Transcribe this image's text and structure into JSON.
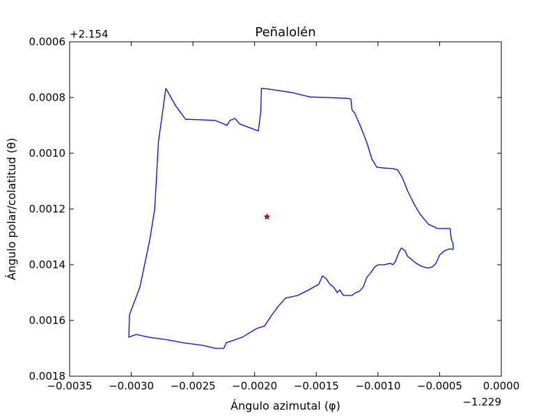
{
  "chart_data": {
    "type": "line",
    "title": "Peñalolén",
    "xlabel": "Ángulo azimutal (φ)",
    "ylabel": "Ángulo polar/colatitud (θ)",
    "x_offset_label": "−1.229",
    "y_offset_label": "+2.154",
    "x_offset": -1.229,
    "y_offset": 2.154,
    "xlim": [
      -0.0035,
      0.0
    ],
    "ylim": [
      0.0006,
      0.0018
    ],
    "y_inverted": true,
    "grid": false,
    "xticks": [
      -0.0035,
      -0.003,
      -0.0025,
      -0.002,
      -0.0015,
      -0.001,
      -0.0005,
      0.0
    ],
    "xtick_labels": [
      "−0.0035",
      "−0.0030",
      "−0.0025",
      "−0.0020",
      "−0.0015",
      "−0.0010",
      "−0.0005",
      "0.0000"
    ],
    "yticks": [
      0.0006,
      0.0008,
      0.001,
      0.0012,
      0.0014,
      0.0016,
      0.0018
    ],
    "ytick_labels": [
      "0.0006",
      "0.0008",
      "0.0010",
      "0.0012",
      "0.0014",
      "0.0016",
      "0.0018"
    ],
    "series": [
      {
        "color": "#0000ff",
        "points": [
          [
            -0.00272,
            0.000767
          ],
          [
            -0.00264,
            0.00083
          ],
          [
            -0.00256,
            0.000878
          ],
          [
            -0.00243,
            0.00088
          ],
          [
            -0.00232,
            0.000882
          ],
          [
            -0.00225,
            0.000895
          ],
          [
            -0.002225,
            0.0009
          ],
          [
            -0.0022,
            0.000882
          ],
          [
            -0.00216,
            0.000875
          ],
          [
            -0.00212,
            0.000895
          ],
          [
            -0.00197,
            0.00092
          ],
          [
            -0.00196,
            0.000885
          ],
          [
            -0.00195,
            0.00085
          ],
          [
            -0.001945,
            0.000767
          ],
          [
            -0.00188,
            0.00077
          ],
          [
            -0.0017,
            0.000782
          ],
          [
            -0.00155,
            0.000798
          ],
          [
            -0.0014,
            0.0008
          ],
          [
            -0.00125,
            0.000803
          ],
          [
            -0.00122,
            0.000805
          ],
          [
            -0.00121,
            0.000845
          ],
          [
            -0.00119,
            0.000855
          ],
          [
            -0.00114,
            0.000905
          ],
          [
            -0.00109,
            0.000962
          ],
          [
            -0.00105,
            0.00102
          ],
          [
            -0.00101,
            0.00105
          ],
          [
            -0.00095,
            0.001053
          ],
          [
            -0.00088,
            0.001055
          ],
          [
            -0.00084,
            0.00106
          ],
          [
            -0.0008,
            0.00109
          ],
          [
            -0.00076,
            0.001135
          ],
          [
            -0.00071,
            0.00118
          ],
          [
            -0.00066,
            0.001218
          ],
          [
            -0.00059,
            0.001255
          ],
          [
            -0.00054,
            0.001265
          ],
          [
            -0.00052,
            0.00127
          ],
          [
            -0.000415,
            0.00127
          ],
          [
            -0.00041,
            0.00129
          ],
          [
            -0.000405,
            0.00131
          ],
          [
            -0.00039,
            0.001325
          ],
          [
            -0.00039,
            0.001345
          ],
          [
            -0.00042,
            0.001343
          ],
          [
            -0.00046,
            0.00135
          ],
          [
            -0.0005,
            0.001365
          ],
          [
            -0.00053,
            0.001395
          ],
          [
            -0.00056,
            0.001408
          ],
          [
            -0.0006,
            0.001412
          ],
          [
            -0.00065,
            0.001405
          ],
          [
            -0.00069,
            0.001395
          ],
          [
            -0.00073,
            0.00138
          ],
          [
            -0.00076,
            0.00137
          ],
          [
            -0.00078,
            0.00135
          ],
          [
            -0.00081,
            0.00134
          ],
          [
            -0.00083,
            0.001355
          ],
          [
            -0.00086,
            0.00139
          ],
          [
            -0.00088,
            0.0014
          ],
          [
            -0.0009,
            0.001395
          ],
          [
            -0.00095,
            0.0014
          ],
          [
            -0.001,
            0.0014
          ],
          [
            -0.00103,
            0.00141
          ],
          [
            -0.00106,
            0.00143
          ],
          [
            -0.00109,
            0.001445
          ],
          [
            -0.00112,
            0.00148
          ],
          [
            -0.00115,
            0.001495
          ],
          [
            -0.00118,
            0.0015
          ],
          [
            -0.00121,
            0.00151
          ],
          [
            -0.00128,
            0.00151
          ],
          [
            -0.00131,
            0.00149
          ],
          [
            -0.00133,
            0.0015
          ],
          [
            -0.00136,
            0.00148
          ],
          [
            -0.00139,
            0.00147
          ],
          [
            -0.00142,
            0.00145
          ],
          [
            -0.00145,
            0.00144
          ],
          [
            -0.00148,
            0.00147
          ],
          [
            -0.00152,
            0.00148
          ],
          [
            -0.00156,
            0.00149
          ],
          [
            -0.00165,
            0.00151
          ],
          [
            -0.00175,
            0.00152
          ],
          [
            -0.00181,
            0.00155
          ],
          [
            -0.00186,
            0.00158
          ],
          [
            -0.00192,
            0.00162
          ],
          [
            -0.00198,
            0.001628
          ],
          [
            -0.0021,
            0.00166
          ],
          [
            -0.00223,
            0.00168
          ],
          [
            -0.00225,
            0.0017
          ],
          [
            -0.00232,
            0.0017
          ],
          [
            -0.00241,
            0.00169
          ],
          [
            -0.00258,
            0.00168
          ],
          [
            -0.0027,
            0.00167
          ],
          [
            -0.00286,
            0.00166
          ],
          [
            -0.00296,
            0.00165
          ],
          [
            -0.00302,
            0.00166
          ],
          [
            -0.003015,
            0.00158
          ],
          [
            -0.00293,
            0.00148
          ],
          [
            -0.00285,
            0.00131
          ],
          [
            -0.00281,
            0.0012
          ],
          [
            -0.00278,
            0.00096
          ],
          [
            -0.00272,
            0.000767
          ]
        ]
      },
      {
        "color": "#ff0000",
        "marker": "star",
        "points": [
          [
            -0.0019,
            0.001228
          ]
        ]
      }
    ]
  }
}
